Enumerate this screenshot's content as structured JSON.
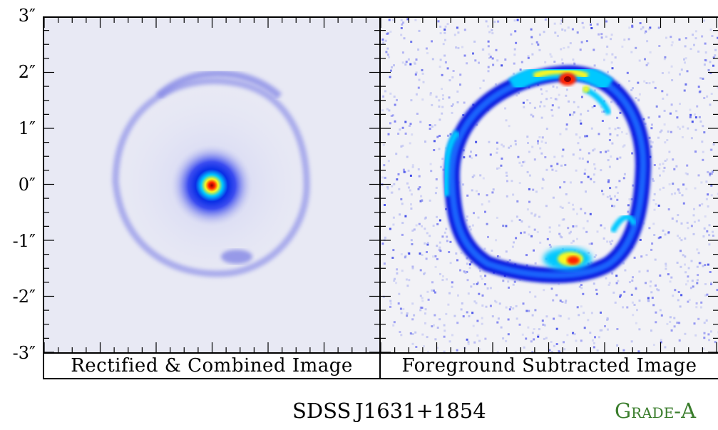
{
  "figure": {
    "y_ticks": [
      "3″",
      "2″",
      "1″",
      "0″",
      "-1″",
      "-2″",
      "-3″"
    ],
    "y_tick_values": [
      3,
      2,
      1,
      0,
      -1,
      -2,
      -3
    ],
    "axis_range_arcsec": [
      -3,
      3
    ],
    "panels": [
      {
        "caption": "Rectified & Combined Image"
      },
      {
        "caption": "Foreground Subtracted Image"
      }
    ],
    "object_name": "SDSS J1631+1854",
    "grade": "Grade-A",
    "colors": {
      "grade_text": "#3a7d2c",
      "colormap": [
        "#eef0fa",
        "#6a6ef0",
        "#0a1fe0",
        "#00b0ff",
        "#f8f820",
        "#ff2200",
        "#8a0000"
      ]
    }
  }
}
